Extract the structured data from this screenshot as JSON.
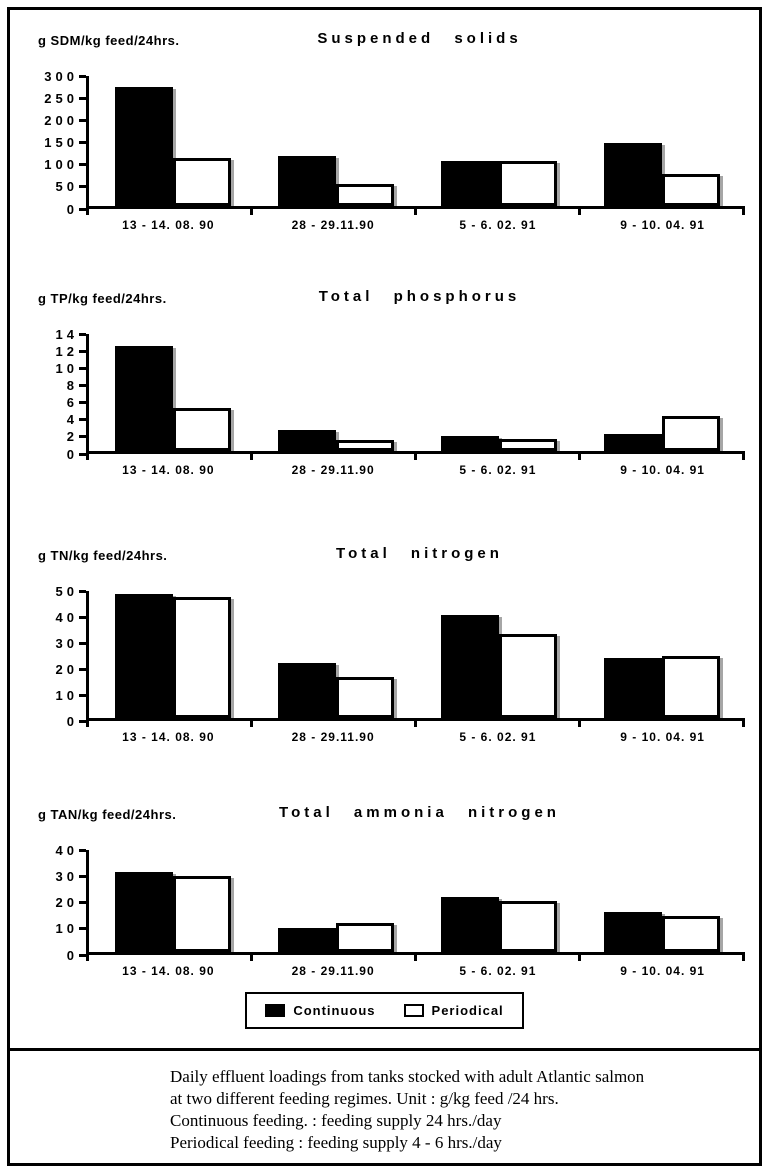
{
  "colors": {
    "ink": "#000000",
    "paper": "#ffffff"
  },
  "chart_data": [
    {
      "type": "bar",
      "id": "suspended-solids",
      "unit_label": "g SDM/kg feed/24hrs.",
      "title": "Suspended solids",
      "ymax": 300,
      "yticks": [
        0,
        50,
        100,
        150,
        200,
        250,
        300
      ],
      "categories": [
        "13 - 14. 08. 90",
        "28 - 29.11.90",
        "5 - 6. 02. 91",
        "9 - 10. 04. 91"
      ],
      "series": [
        {
          "name": "Continuous",
          "fill": "#000000",
          "values": [
            275,
            115,
            105,
            145
          ]
        },
        {
          "name": "Periodical",
          "fill": "#ffffff",
          "values": [
            110,
            50,
            105,
            75
          ]
        }
      ],
      "legend_position": "none",
      "grid": false
    },
    {
      "type": "bar",
      "id": "total-phosphorus",
      "unit_label": "g TP/kg feed/24hrs.",
      "title": "Total phosphorus",
      "ymax": 14,
      "yticks": [
        0,
        2,
        4,
        6,
        8,
        10,
        12,
        14
      ],
      "categories": [
        "13 - 14. 08. 90",
        "28 - 29.11.90",
        "5 - 6. 02. 91",
        "9 - 10. 04. 91"
      ],
      "series": [
        {
          "name": "Continuous",
          "fill": "#000000",
          "values": [
            12.6,
            2.5,
            1.8,
            2.0
          ]
        },
        {
          "name": "Periodical",
          "fill": "#ffffff",
          "values": [
            5.2,
            1.3,
            1.4,
            4.2
          ]
        }
      ],
      "legend_position": "none",
      "grid": false
    },
    {
      "type": "bar",
      "id": "total-nitrogen",
      "unit_label": "g TN/kg feed/24hrs.",
      "title": "Total nitrogen",
      "ymax": 50,
      "yticks": [
        0,
        10,
        20,
        30,
        40,
        50
      ],
      "categories": [
        "13 - 14. 08. 90",
        "28 - 29.11.90",
        "5 - 6. 02. 91",
        "9 - 10. 04. 91"
      ],
      "series": [
        {
          "name": "Continuous",
          "fill": "#000000",
          "values": [
            49,
            21.5,
            40.5,
            23.5
          ]
        },
        {
          "name": "Periodical",
          "fill": "#ffffff",
          "values": [
            47.5,
            16,
            33,
            24.5
          ]
        }
      ],
      "legend_position": "none",
      "grid": false
    },
    {
      "type": "bar",
      "id": "total-ammonia-nitrogen",
      "unit_label": "g TAN/kg feed/24hrs.",
      "title": "Total ammonia nitrogen",
      "ymax": 40,
      "yticks": [
        0,
        10,
        20,
        30,
        40
      ],
      "categories": [
        "13 - 14. 08. 90",
        "28 - 29.11.90",
        "5 - 6. 02. 91",
        "9 - 10. 04. 91"
      ],
      "series": [
        {
          "name": "Continuous",
          "fill": "#000000",
          "values": [
            31.5,
            9.5,
            21.5,
            15.5
          ]
        },
        {
          "name": "Periodical",
          "fill": "#ffffff",
          "values": [
            30,
            11.5,
            20,
            14
          ]
        }
      ],
      "legend_position": "below",
      "grid": false
    }
  ],
  "legend": {
    "items": [
      {
        "label": "Continuous",
        "fill": "#000000"
      },
      {
        "label": "Periodical",
        "fill": "#ffffff"
      }
    ]
  },
  "caption": {
    "lines": [
      "Daily effluent loadings from tanks stocked with adult Atlantic salmon",
      "at two different feeding regimes.  Unit : g/kg feed /24 hrs.",
      "Continuous feeding. : feeding supply 24 hrs./day",
      "Periodical feeding : feeding supply 4 - 6 hrs./day"
    ]
  }
}
